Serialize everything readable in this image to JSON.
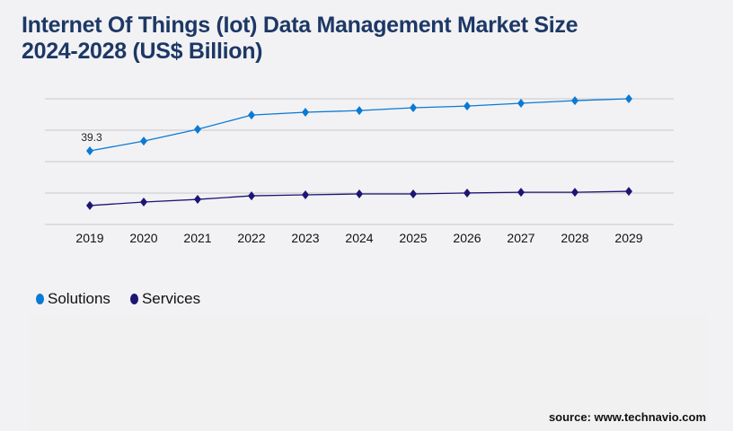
{
  "title_line1": "Internet Of Things (Iot) Data Management Market Size",
  "title_line2": "2024-2028 (US$ Billion)",
  "source": "source: www.technavio.com",
  "chart_data": {
    "type": "line",
    "title": "Internet Of Things (Iot) Data Management Market Size 2024-2028 (US$ Billion)",
    "categories": [
      "2019",
      "2020",
      "2021",
      "2022",
      "2023",
      "2024",
      "2025",
      "2026",
      "2027",
      "2028",
      "2029"
    ],
    "series": [
      {
        "name": "Solutions",
        "color": "#0a7ad4",
        "values": [
          39.3,
          44.5,
          50.8,
          58.4,
          59.9,
          60.8,
          62.3,
          63.2,
          64.7,
          66.1,
          67.1
        ]
      },
      {
        "name": "Services",
        "color": "#1c1574",
        "values": [
          10.1,
          12.0,
          13.4,
          15.3,
          15.8,
          16.3,
          16.3,
          16.8,
          17.2,
          17.2,
          17.7
        ]
      }
    ],
    "data_labels": [
      {
        "series": "Solutions",
        "category": "2019",
        "text": "39.3"
      }
    ],
    "ylim": [
      0,
      67.1
    ],
    "y_tick_labels_shown": false,
    "grid": true,
    "legend": "bottom-left"
  }
}
